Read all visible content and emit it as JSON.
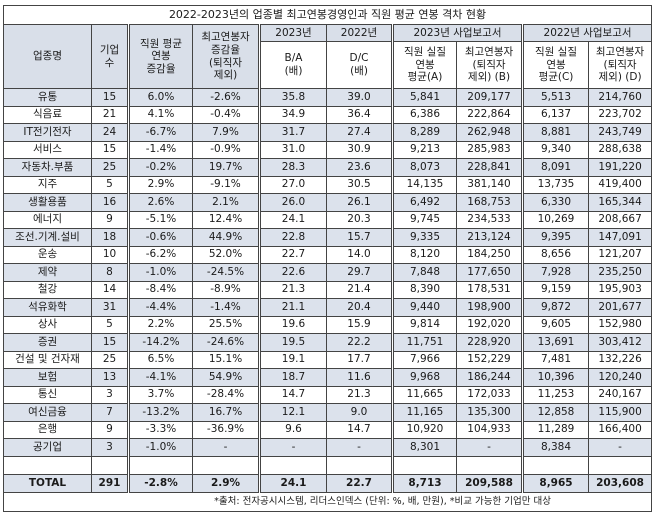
{
  "title": "2022-2023년의 업종별 최고연봉경영인과 직원 평균 연봉 격차 현황",
  "headers": {
    "industry": "업종명",
    "company_count": "기업\n수",
    "emp_avg_change": "직원 평균\n연봉\n증감율",
    "top_change": "최고연봉자\n증감율\n(퇴직자\n제외)",
    "y2023": "2023년",
    "y2022": "2022년",
    "ratio_ba": "B/A\n(배)",
    "ratio_dc": "D/C\n(배)",
    "report2023": "2023년 사업보고서",
    "report2022": "2022년 사업보고서",
    "emp_avg_a": "직원 실질\n연봉\n평균(A)",
    "top_b": "최고연봉자\n(퇴직자\n제외) (B)",
    "emp_avg_c": "직원 실질\n연봉\n평균(C)",
    "top_d": "최고연봉자\n(퇴직자\n제외) (D)"
  },
  "rows": [
    {
      "industry": "유통",
      "count": "15",
      "emp_chg": "6.0%",
      "top_chg": "-2.6%",
      "ba": "35.8",
      "dc": "39.0",
      "a": "5,841",
      "b": "209,177",
      "c": "5,513",
      "d": "214,760"
    },
    {
      "industry": "식음료",
      "count": "21",
      "emp_chg": "4.1%",
      "top_chg": "-0.4%",
      "ba": "34.9",
      "dc": "36.4",
      "a": "6,386",
      "b": "222,864",
      "c": "6,137",
      "d": "223,702"
    },
    {
      "industry": "IT전기전자",
      "count": "24",
      "emp_chg": "-6.7%",
      "top_chg": "7.9%",
      "ba": "31.7",
      "dc": "27.4",
      "a": "8,289",
      "b": "262,948",
      "c": "8,881",
      "d": "243,749"
    },
    {
      "industry": "서비스",
      "count": "15",
      "emp_chg": "-1.4%",
      "top_chg": "-0.9%",
      "ba": "31.0",
      "dc": "30.9",
      "a": "9,213",
      "b": "285,983",
      "c": "9,340",
      "d": "288,638"
    },
    {
      "industry": "자동차.부품",
      "count": "25",
      "emp_chg": "-0.2%",
      "top_chg": "19.7%",
      "ba": "28.3",
      "dc": "23.6",
      "a": "8,073",
      "b": "228,841",
      "c": "8,091",
      "d": "191,220"
    },
    {
      "industry": "지주",
      "count": "5",
      "emp_chg": "2.9%",
      "top_chg": "-9.1%",
      "ba": "27.0",
      "dc": "30.5",
      "a": "14,135",
      "b": "381,140",
      "c": "13,735",
      "d": "419,400"
    },
    {
      "industry": "생활용품",
      "count": "16",
      "emp_chg": "2.6%",
      "top_chg": "2.1%",
      "ba": "26.0",
      "dc": "26.1",
      "a": "6,492",
      "b": "168,753",
      "c": "6,330",
      "d": "165,344"
    },
    {
      "industry": "에너지",
      "count": "9",
      "emp_chg": "-5.1%",
      "top_chg": "12.4%",
      "ba": "24.1",
      "dc": "20.3",
      "a": "9,745",
      "b": "234,533",
      "c": "10,269",
      "d": "208,667"
    },
    {
      "industry": "조선.기계.설비",
      "count": "18",
      "emp_chg": "-0.6%",
      "top_chg": "44.9%",
      "ba": "22.8",
      "dc": "15.7",
      "a": "9,335",
      "b": "213,124",
      "c": "9,395",
      "d": "147,091"
    },
    {
      "industry": "운송",
      "count": "10",
      "emp_chg": "-6.2%",
      "top_chg": "52.0%",
      "ba": "22.7",
      "dc": "14.0",
      "a": "8,120",
      "b": "184,250",
      "c": "8,656",
      "d": "121,207"
    },
    {
      "industry": "제약",
      "count": "8",
      "emp_chg": "-1.0%",
      "top_chg": "-24.5%",
      "ba": "22.6",
      "dc": "29.7",
      "a": "7,848",
      "b": "177,650",
      "c": "7,928",
      "d": "235,250"
    },
    {
      "industry": "철강",
      "count": "14",
      "emp_chg": "-8.4%",
      "top_chg": "-8.9%",
      "ba": "21.3",
      "dc": "21.4",
      "a": "8,390",
      "b": "178,531",
      "c": "9,159",
      "d": "195,903"
    },
    {
      "industry": "석유화학",
      "count": "31",
      "emp_chg": "-4.4%",
      "top_chg": "-1.4%",
      "ba": "21.1",
      "dc": "20.4",
      "a": "9,440",
      "b": "198,900",
      "c": "9,872",
      "d": "201,677"
    },
    {
      "industry": "상사",
      "count": "5",
      "emp_chg": "2.2%",
      "top_chg": "25.5%",
      "ba": "19.6",
      "dc": "15.9",
      "a": "9,814",
      "b": "192,020",
      "c": "9,605",
      "d": "152,980"
    },
    {
      "industry": "증권",
      "count": "15",
      "emp_chg": "-14.2%",
      "top_chg": "-24.6%",
      "ba": "19.5",
      "dc": "22.2",
      "a": "11,751",
      "b": "228,920",
      "c": "13,691",
      "d": "303,412"
    },
    {
      "industry": "건설 및 건자재",
      "count": "25",
      "emp_chg": "6.5%",
      "top_chg": "15.1%",
      "ba": "19.1",
      "dc": "17.7",
      "a": "7,966",
      "b": "152,229",
      "c": "7,481",
      "d": "132,226"
    },
    {
      "industry": "보험",
      "count": "13",
      "emp_chg": "-4.1%",
      "top_chg": "54.9%",
      "ba": "18.7",
      "dc": "11.6",
      "a": "9,968",
      "b": "186,244",
      "c": "10,396",
      "d": "120,240"
    },
    {
      "industry": "통신",
      "count": "3",
      "emp_chg": "3.7%",
      "top_chg": "-28.4%",
      "ba": "14.7",
      "dc": "21.3",
      "a": "11,665",
      "b": "172,033",
      "c": "11,253",
      "d": "240,167"
    },
    {
      "industry": "여신금융",
      "count": "7",
      "emp_chg": "-13.2%",
      "top_chg": "16.7%",
      "ba": "12.1",
      "dc": "9.0",
      "a": "11,165",
      "b": "135,300",
      "c": "12,858",
      "d": "115,900"
    },
    {
      "industry": "은행",
      "count": "9",
      "emp_chg": "-3.3%",
      "top_chg": "-36.9%",
      "ba": "9.6",
      "dc": "14.7",
      "a": "10,920",
      "b": "104,933",
      "c": "11,289",
      "d": "166,400"
    },
    {
      "industry": "공기업",
      "count": "3",
      "emp_chg": "-1.0%",
      "top_chg": "-",
      "ba": "-",
      "dc": "-",
      "a": "8,301",
      "b": "-",
      "c": "8,384",
      "d": "-"
    }
  ],
  "total": {
    "industry": "TOTAL",
    "count": "291",
    "emp_chg": "-2.8%",
    "top_chg": "2.9%",
    "ba": "24.1",
    "dc": "22.7",
    "a": "8,713",
    "b": "209,588",
    "c": "8,965",
    "d": "203,608"
  },
  "footnote": "*출처: 전자공시시스템, 리더스인덱스 (단위: %, 배, 만원), *비교 가능한 기업만 대상"
}
